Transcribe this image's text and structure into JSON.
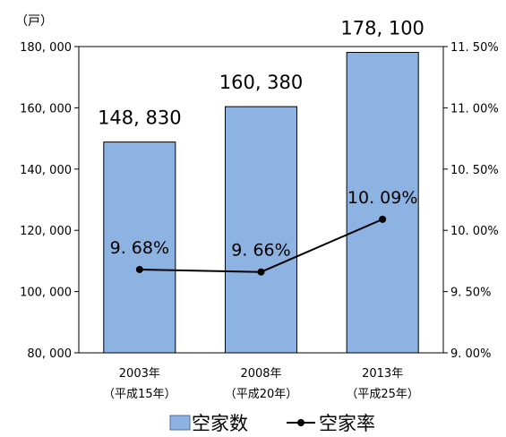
{
  "chart_data": {
    "type": "bar",
    "y_unit_label": "（戸）",
    "categories": [
      "2003年",
      "2008年",
      "2013年"
    ],
    "category_sublabels": [
      "（平成15年）",
      "（平成20年）",
      "（平成25年）"
    ],
    "series": [
      {
        "name": "空家数",
        "type": "bar",
        "axis": "left",
        "values": [
          148830,
          160380,
          178100
        ],
        "value_labels": [
          "148, 830",
          "160, 380",
          "178, 100"
        ],
        "color": "#8db3e2"
      },
      {
        "name": "空家率",
        "type": "line",
        "axis": "right",
        "values": [
          9.68,
          9.66,
          10.09
        ],
        "value_labels": [
          "9. 68%",
          "9. 66%",
          "10. 09%"
        ],
        "color": "#000000"
      }
    ],
    "left_axis": {
      "ylim": [
        80000,
        180000
      ],
      "ticks": [
        80000,
        100000,
        120000,
        140000,
        160000,
        180000
      ],
      "tick_labels": [
        "80, 000",
        "100, 000",
        "120, 000",
        "140, 000",
        "160, 000",
        "180, 000"
      ]
    },
    "right_axis": {
      "ylim": [
        9.0,
        11.5
      ],
      "ticks": [
        9.0,
        9.5,
        10.0,
        10.5,
        11.0,
        11.5
      ],
      "tick_labels": [
        "9. 00%",
        "9. 50%",
        "10. 00%",
        "10. 50%",
        "11. 00%",
        "11. 50%"
      ]
    },
    "grid": false,
    "legend": "bottom"
  }
}
